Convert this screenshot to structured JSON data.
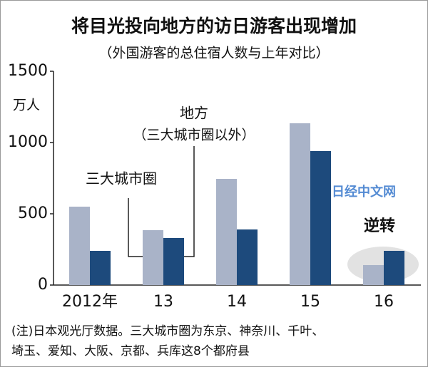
{
  "chart_data": {
    "type": "bar",
    "title": "将目光投向地方的访日游客出现增加",
    "subtitle": "（外国游客的总住宿人数与上年对比）",
    "y_unit": "万人",
    "categories": [
      "2012年",
      "13",
      "14",
      "15",
      "16"
    ],
    "series": [
      {
        "name": "三大城市圈",
        "color": "#a9b3c8",
        "values": [
          550,
          385,
          745,
          1135,
          140
        ]
      },
      {
        "name": "地方",
        "color": "#1d4a7c",
        "values": [
          240,
          330,
          390,
          940,
          240
        ]
      }
    ],
    "ylim": [
      0,
      1500
    ],
    "yticks": [
      0,
      500,
      1000,
      1500
    ],
    "grid": false,
    "annotations": {
      "local_note": "（三大城市圈以外）",
      "reversal": "逆转",
      "watermark": "日经中文网"
    },
    "notes": [
      "(注)日本观光厅数据。三大城市圈为东京、神奈川、千叶、",
      "埼玉、爱知、大阪、京都、兵库这8个都府县"
    ]
  }
}
